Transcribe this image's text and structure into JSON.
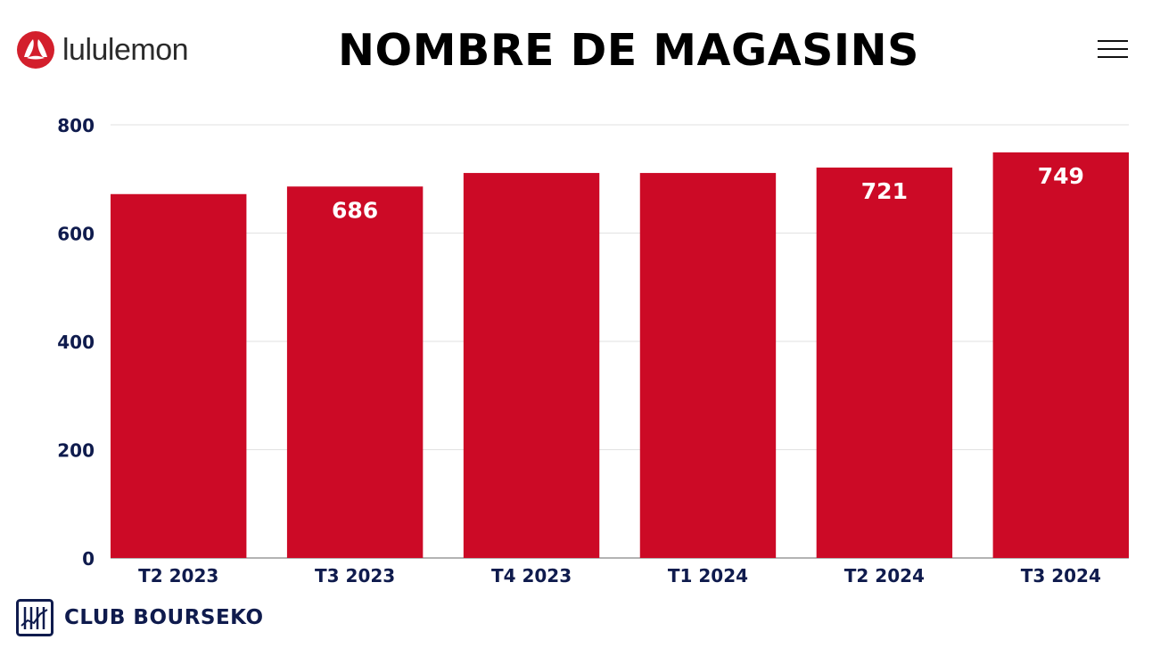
{
  "brand": {
    "name": "lululemon",
    "logo_icon": "lululemon-logo-icon",
    "accent": "#cc0a26"
  },
  "header": {
    "title": "NOMBRE DE MAGASINS",
    "menu_icon": "hamburger-menu-icon"
  },
  "footer": {
    "label": "CLUB BOURSEKO",
    "icon": "bourseko-chart-icon",
    "color": "#0f1b4d"
  },
  "chart_data": {
    "type": "bar",
    "title": "NOMBRE DE MAGASINS",
    "xlabel": "",
    "ylabel": "",
    "categories": [
      "T2 2023",
      "T3 2023",
      "T4 2023",
      "T1 2024",
      "T2 2024",
      "T3 2024"
    ],
    "values": [
      672,
      686,
      711,
      711,
      721,
      749
    ],
    "data_labels": [
      "",
      "686",
      "",
      "",
      "721",
      "749"
    ],
    "ylim": [
      0,
      800
    ],
    "yticks": [
      "0",
      "200",
      "400",
      "600",
      "800"
    ],
    "grid": true,
    "legend": "none",
    "bar_color": "#cc0a26",
    "label_color": "#ffffff",
    "axis_label_color": "#0f1b4d"
  }
}
